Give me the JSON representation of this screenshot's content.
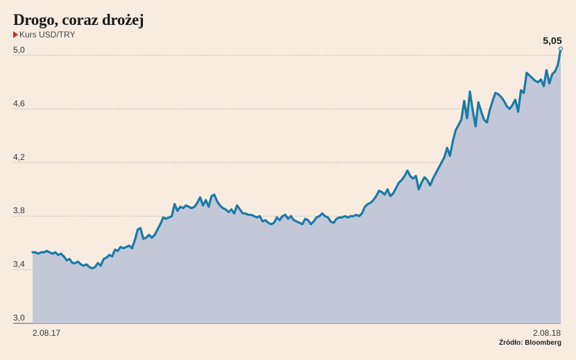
{
  "title": "Drogo, coraz drożej",
  "subtitle": "Kurs USD/TRY",
  "source": "Źródło: Bloomberg",
  "colors": {
    "background": "#f8ece0",
    "line": "#1b7aa6",
    "area": "#c2c8d8",
    "marker": "#e2231a"
  },
  "chart_data": {
    "type": "area",
    "ylim": [
      3.0,
      5.1
    ],
    "yticks": [
      3.0,
      3.4,
      3.8,
      4.2,
      4.6,
      5.0
    ],
    "ytick_labels": [
      "3,0",
      "3,4",
      "3,8",
      "4,2",
      "4,6",
      "5,0"
    ],
    "xtick_labels": [
      "2.08.17",
      "2.08.18"
    ],
    "end_label": "5,05",
    "grid": true,
    "series": [
      {
        "values": [
          3.53,
          3.53,
          3.52,
          3.53,
          3.53,
          3.54,
          3.53,
          3.52,
          3.53,
          3.51,
          3.52,
          3.5,
          3.47,
          3.48,
          3.45,
          3.45,
          3.46,
          3.44,
          3.43,
          3.44,
          3.42,
          3.41,
          3.42,
          3.45,
          3.43,
          3.48,
          3.49,
          3.51,
          3.5,
          3.55,
          3.54,
          3.57,
          3.56,
          3.57,
          3.58,
          3.56,
          3.62,
          3.7,
          3.71,
          3.63,
          3.64,
          3.66,
          3.64,
          3.66,
          3.7,
          3.74,
          3.79,
          3.78,
          3.79,
          3.8,
          3.89,
          3.84,
          3.87,
          3.86,
          3.88,
          3.87,
          3.86,
          3.87,
          3.9,
          3.94,
          3.88,
          3.92,
          3.87,
          3.95,
          3.96,
          3.91,
          3.88,
          3.86,
          3.85,
          3.83,
          3.85,
          3.82,
          3.88,
          3.85,
          3.82,
          3.82,
          3.81,
          3.81,
          3.8,
          3.79,
          3.8,
          3.76,
          3.77,
          3.75,
          3.74,
          3.75,
          3.79,
          3.77,
          3.8,
          3.81,
          3.78,
          3.8,
          3.77,
          3.76,
          3.75,
          3.74,
          3.78,
          3.77,
          3.74,
          3.76,
          3.79,
          3.8,
          3.82,
          3.8,
          3.79,
          3.76,
          3.75,
          3.78,
          3.79,
          3.79,
          3.8,
          3.79,
          3.8,
          3.8,
          3.81,
          3.8,
          3.82,
          3.87,
          3.89,
          3.9,
          3.92,
          3.95,
          3.99,
          3.98,
          3.96,
          4.0,
          3.95,
          3.97,
          4.01,
          4.05,
          4.07,
          4.1,
          4.14,
          4.1,
          4.08,
          4.1,
          4.0,
          4.05,
          4.09,
          4.07,
          4.03,
          4.08,
          4.12,
          4.16,
          4.2,
          4.24,
          4.31,
          4.25,
          4.36,
          4.44,
          4.48,
          4.52,
          4.66,
          4.53,
          4.73,
          4.59,
          4.47,
          4.65,
          4.58,
          4.52,
          4.5,
          4.59,
          4.66,
          4.72,
          4.71,
          4.69,
          4.66,
          4.62,
          4.6,
          4.63,
          4.67,
          4.58,
          4.74,
          4.72,
          4.87,
          4.85,
          4.83,
          4.81,
          4.8,
          4.82,
          4.77,
          4.89,
          4.79,
          4.86,
          4.88,
          4.93,
          5.05
        ]
      }
    ]
  }
}
